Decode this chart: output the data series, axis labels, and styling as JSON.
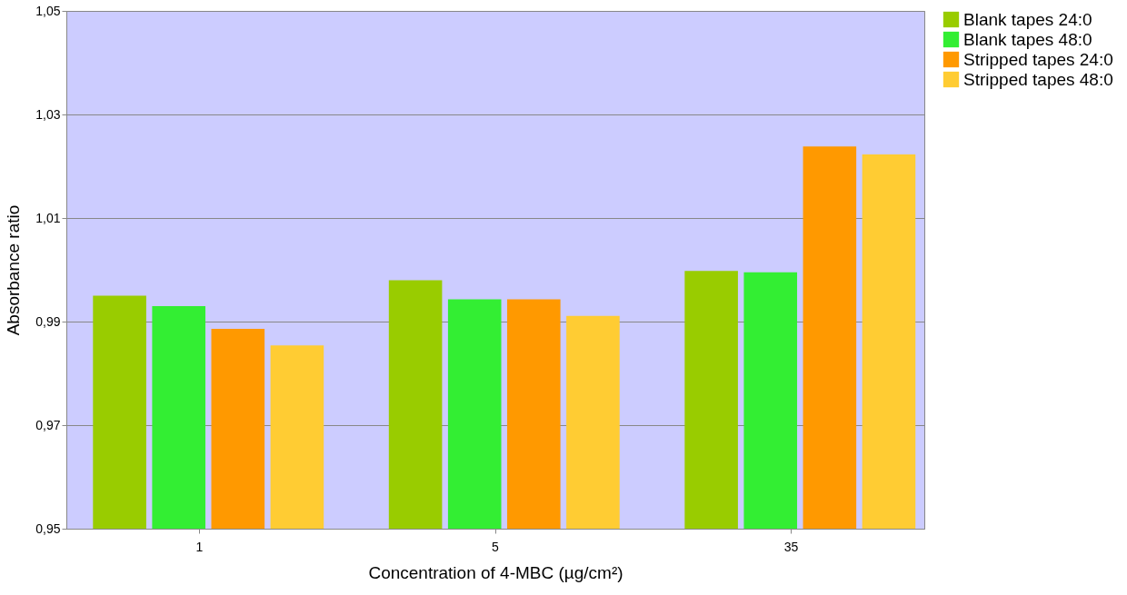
{
  "chart_data": {
    "type": "bar",
    "xlabel": "Concentration of 4-MBC (µg/cm²)",
    "ylabel": "Absorbance ratio",
    "categories": [
      "1",
      "5",
      "35"
    ],
    "series": [
      {
        "name": "Blank tapes 24:0",
        "color": "#99cc00",
        "values": [
          0.995,
          0.998,
          0.9998
        ]
      },
      {
        "name": "Blank tapes 48:0",
        "color": "#33ee33",
        "values": [
          0.993,
          0.9943,
          0.9995
        ]
      },
      {
        "name": "Stripped tapes 24:0",
        "color": "#ff9900",
        "values": [
          0.9886,
          0.9943,
          1.0238
        ]
      },
      {
        "name": "Stripped tapes 48:0",
        "color": "#ffcc33",
        "values": [
          0.9854,
          0.9911,
          1.0223
        ]
      }
    ],
    "ylim": [
      0.95,
      1.05
    ],
    "yticks": [
      {
        "value": 0.95,
        "label": "0,95"
      },
      {
        "value": 0.97,
        "label": "0,97"
      },
      {
        "value": 0.99,
        "label": "0,99"
      },
      {
        "value": 1.01,
        "label": "1,01"
      },
      {
        "value": 1.03,
        "label": "1,03"
      },
      {
        "value": 1.05,
        "label": "1,05"
      }
    ],
    "grid": "y",
    "legend": "right"
  }
}
